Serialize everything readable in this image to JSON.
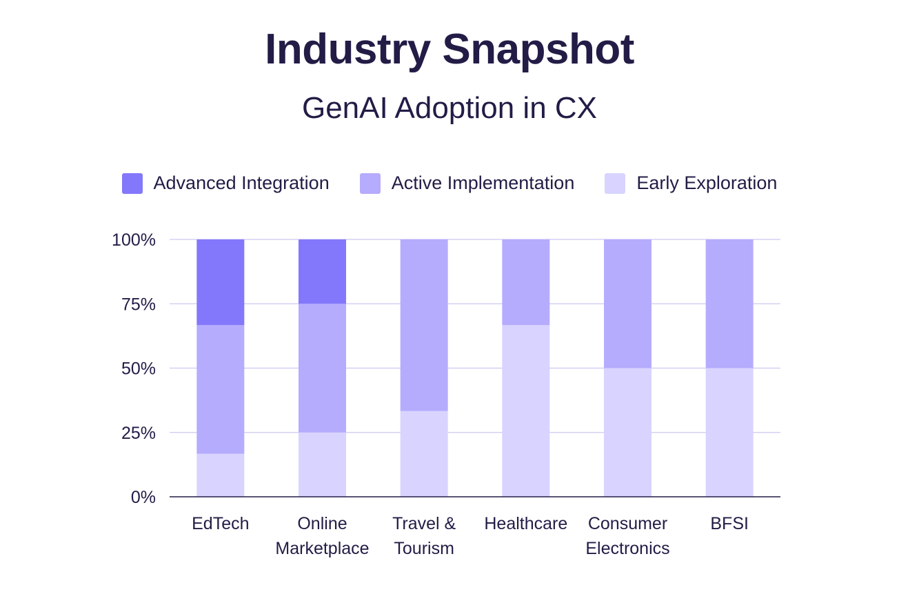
{
  "chart_data": {
    "type": "bar",
    "stacked": true,
    "title": "Industry Snapshot",
    "subtitle": "GenAI Adoption in CX",
    "categories": [
      [
        "EdTech"
      ],
      [
        "Online",
        "Marketplace"
      ],
      [
        "Travel &",
        "Tourism"
      ],
      [
        "Healthcare"
      ],
      [
        "Consumer",
        "Electronics"
      ],
      [
        "BFSI"
      ]
    ],
    "series": [
      {
        "name": "Early Exploration",
        "color": "#d8d4ff",
        "values": [
          16.7,
          25,
          33.3,
          66.7,
          50,
          50
        ]
      },
      {
        "name": "Active Implementation",
        "color": "#b5acfd",
        "values": [
          50,
          50,
          66.7,
          33.3,
          50,
          50
        ]
      },
      {
        "name": "Advanced Integration",
        "color": "#8378fb",
        "values": [
          33.3,
          25,
          0,
          0,
          0,
          0
        ]
      }
    ],
    "legend_order": [
      2,
      1,
      0
    ],
    "legend_position": "top",
    "ylim": [
      0,
      100
    ],
    "yticks": [
      "0%",
      "25%",
      "50%",
      "75%",
      "100%"
    ],
    "ytick_values": [
      0,
      25,
      50,
      75,
      100
    ],
    "grid": true,
    "colors": {
      "grid": "#cdc8f3",
      "axis": "#221c46"
    }
  }
}
